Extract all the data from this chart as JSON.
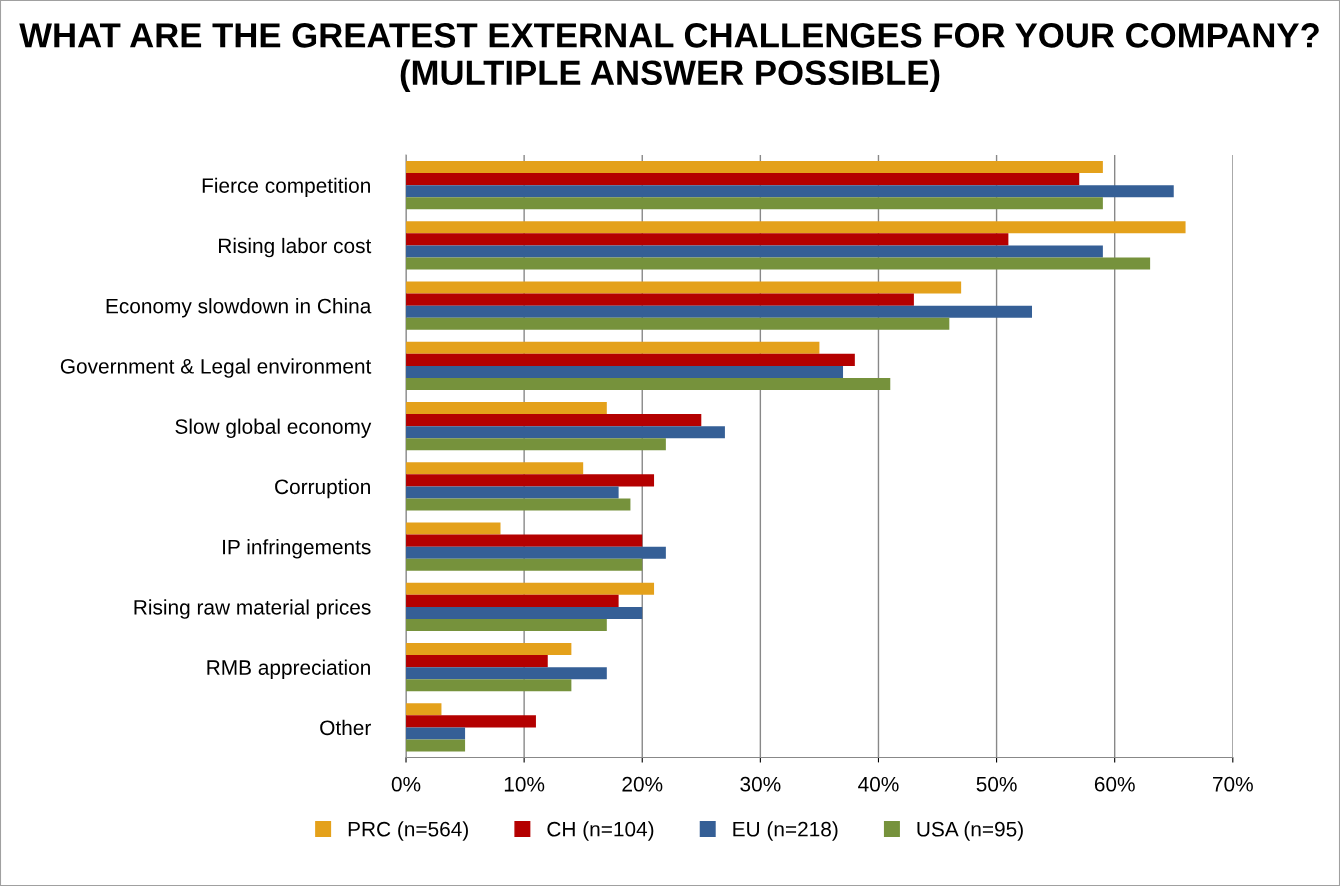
{
  "chart_data": {
    "type": "bar",
    "orientation": "horizontal",
    "title": "WHAT ARE THE GREATEST EXTERNAL CHALLENGES FOR YOUR COMPANY? (MULTIPLE ANSWER POSSIBLE)",
    "categories": [
      "Fierce competition",
      "Rising labor cost",
      "Economy slowdown in China",
      "Government & Legal environment",
      "Slow global economy",
      "Corruption",
      "IP infringements",
      "Rising raw material prices",
      "RMB appreciation",
      "Other"
    ],
    "series": [
      {
        "name": "PRC (n=564)",
        "color": "#e4a11b",
        "values": [
          59,
          66,
          47,
          35,
          17,
          15,
          8,
          21,
          14,
          3
        ]
      },
      {
        "name": "CH (n=104)",
        "color": "#b40000",
        "values": [
          57,
          51,
          43,
          38,
          25,
          21,
          20,
          18,
          12,
          11
        ]
      },
      {
        "name": "EU (n=218)",
        "color": "#355f96",
        "values": [
          65,
          59,
          53,
          37,
          27,
          18,
          22,
          20,
          17,
          5
        ]
      },
      {
        "name": "USA (n=95)",
        "color": "#76923c",
        "values": [
          59,
          63,
          46,
          41,
          22,
          19,
          20,
          17,
          14,
          5
        ]
      }
    ],
    "xlim": [
      0,
      70
    ],
    "xticks": [
      {
        "value": 0,
        "label": "0%"
      },
      {
        "value": 10,
        "label": "10%"
      },
      {
        "value": 20,
        "label": "20%"
      },
      {
        "value": 30,
        "label": "30%"
      },
      {
        "value": 40,
        "label": "40%"
      },
      {
        "value": 50,
        "label": "50%"
      },
      {
        "value": 60,
        "label": "60%"
      },
      {
        "value": 70,
        "label": "70%"
      }
    ],
    "grid": "x",
    "legend": "bottom"
  }
}
